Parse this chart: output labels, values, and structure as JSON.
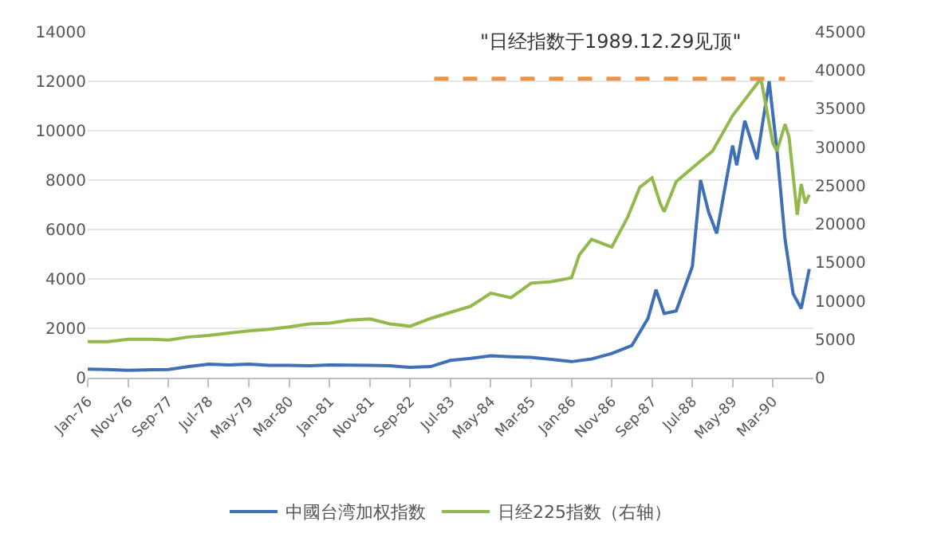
{
  "chart_data": {
    "type": "line",
    "annotations": [
      "\"日经指数于1989.12.29见顶\""
    ],
    "xlim": [
      "1976-01",
      "1991-01"
    ],
    "xticks": [
      {
        "value": "1976-01",
        "label": "Jan-76"
      },
      {
        "value": "1976-11",
        "label": "Nov-76"
      },
      {
        "value": "1977-09",
        "label": "Sep-77"
      },
      {
        "value": "1978-07",
        "label": "Jul-78"
      },
      {
        "value": "1979-05",
        "label": "May-79"
      },
      {
        "value": "1980-03",
        "label": "Mar-80"
      },
      {
        "value": "1981-01",
        "label": "Jan-81"
      },
      {
        "value": "1981-11",
        "label": "Nov-81"
      },
      {
        "value": "1982-09",
        "label": "Sep-82"
      },
      {
        "value": "1983-07",
        "label": "Jul-83"
      },
      {
        "value": "1984-05",
        "label": "May-84"
      },
      {
        "value": "1985-03",
        "label": "Mar-85"
      },
      {
        "value": "1986-01",
        "label": "Jan-86"
      },
      {
        "value": "1986-11",
        "label": "Nov-86"
      },
      {
        "value": "1987-09",
        "label": "Sep-87"
      },
      {
        "value": "1988-07",
        "label": "Jul-88"
      },
      {
        "value": "1989-05",
        "label": "May-89"
      },
      {
        "value": "1990-03",
        "label": "Mar-90"
      }
    ],
    "ylim": [
      0,
      14000
    ],
    "yticks": [
      0,
      2000,
      4000,
      6000,
      8000,
      10000,
      12000,
      14000
    ],
    "y2lim": [
      0,
      45000
    ],
    "y2ticks": [
      0,
      5000,
      10000,
      15000,
      20000,
      25000,
      30000,
      35000,
      40000,
      45000
    ],
    "grid": "y",
    "legend": "bottom",
    "line_style": "solid",
    "marker": "none",
    "series": [
      {
        "name": "中國台湾加权指数",
        "color": "#3f6fb5",
        "x": [
          "1976-01",
          "1976-06",
          "1976-11",
          "1977-05",
          "1977-09",
          "1978-02",
          "1978-07",
          "1978-12",
          "1979-05",
          "1979-10",
          "1980-03",
          "1980-08",
          "1981-01",
          "1981-06",
          "1981-11",
          "1982-04",
          "1982-09",
          "1983-02",
          "1983-07",
          "1983-12",
          "1984-05",
          "1984-10",
          "1985-03",
          "1985-08",
          "1986-01",
          "1986-06",
          "1986-11",
          "1987-04",
          "1987-08",
          "1987-10",
          "1987-12",
          "1988-03",
          "1988-07",
          "1988-09",
          "1988-11",
          "1989-01",
          "1989-05",
          "1989-06",
          "1989-08",
          "1989-11",
          "1990-02",
          "1990-04",
          "1990-06",
          "1990-08",
          "1990-10",
          "1990-12"
        ],
        "values": [
          350,
          330,
          300,
          320,
          330,
          450,
          550,
          520,
          550,
          500,
          500,
          480,
          520,
          510,
          500,
          480,
          420,
          450,
          700,
          780,
          890,
          850,
          820,
          740,
          650,
          760,
          980,
          1300,
          2400,
          3560,
          2600,
          2700,
          4500,
          8000,
          6700,
          5840,
          9400,
          8600,
          10400,
          8840,
          12000,
          9200,
          5600,
          3400,
          2800,
          4400
        ]
      },
      {
        "name": "日经225指数（右轴）",
        "color": "#93b84b",
        "axis": "y2",
        "x": [
          "1976-01",
          "1976-06",
          "1976-11",
          "1977-05",
          "1977-09",
          "1978-02",
          "1978-07",
          "1978-12",
          "1979-05",
          "1979-10",
          "1980-03",
          "1980-08",
          "1981-01",
          "1981-06",
          "1981-11",
          "1982-04",
          "1982-09",
          "1983-02",
          "1983-07",
          "1983-12",
          "1984-03",
          "1984-05",
          "1984-10",
          "1985-03",
          "1985-08",
          "1986-01",
          "1986-03",
          "1986-06",
          "1986-11",
          "1987-03",
          "1987-06",
          "1987-09",
          "1987-11",
          "1987-12",
          "1988-03",
          "1988-07",
          "1988-12",
          "1989-05",
          "1989-12",
          "1990-03",
          "1990-04",
          "1990-06",
          "1990-07",
          "1990-09",
          "1990-10",
          "1990-11",
          "1990-12"
        ],
        "values": [
          4700,
          4700,
          5000,
          5000,
          4900,
          5300,
          5500,
          5800,
          6100,
          6300,
          6600,
          7000,
          7100,
          7500,
          7650,
          7000,
          6700,
          7700,
          8500,
          9300,
          10300,
          11000,
          10400,
          12300,
          12500,
          13000,
          16000,
          18000,
          17000,
          20900,
          24800,
          26000,
          22700,
          21600,
          25500,
          27300,
          29500,
          34100,
          38900,
          30500,
          29500,
          33000,
          31300,
          21200,
          25200,
          22700,
          23800
        ]
      },
      {
        "color": "#e8944a",
        "axis": "y2",
        "line_style": "dashed",
        "x": [
          "1983-03",
          "1990-06"
        ],
        "values": [
          38900,
          38900
        ]
      }
    ]
  }
}
